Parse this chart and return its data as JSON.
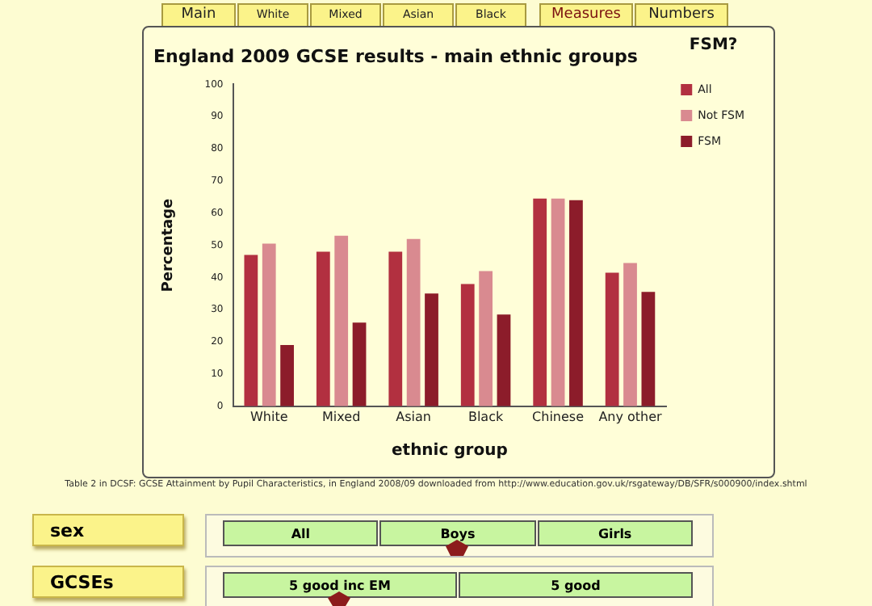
{
  "chart_data": [
    {
      "type": "bar",
      "title": "England 2009 GCSE results - main ethnic groups",
      "xlabel": "ethnic group",
      "ylabel": "Percentage",
      "legend_title": "FSM?",
      "categories": [
        "White",
        "Mixed",
        "Asian",
        "Black",
        "Chinese",
        "Any other"
      ],
      "series": [
        {
          "name": "All",
          "color": "#b23040",
          "values": [
            47,
            48,
            48,
            38,
            64.5,
            41.5
          ]
        },
        {
          "name": "Not FSM",
          "color": "#d98a90",
          "values": [
            50.5,
            53,
            52,
            42,
            64.5,
            44.5
          ]
        },
        {
          "name": "FSM",
          "color": "#8c1c2a",
          "values": [
            19,
            26,
            35,
            28.5,
            64,
            35.5
          ]
        }
      ],
      "ylim": [
        0,
        100
      ],
      "yticks": [
        0,
        10,
        20,
        30,
        40,
        50,
        60,
        70,
        80,
        90,
        100
      ],
      "grid": false,
      "legend": "top right",
      "annotations": [
        "Table 2 in DCSF: GCSE Attainment by Pupil Characteristics, in England 2008/09 downloaded from http://www.education.gov.uk/rsgateway/DB/SFR/s000900/index.shtml"
      ]
    },
    {
      "type": "other",
      "annotations": [
        "Main",
        "White",
        "Mixed",
        "Asian",
        "Black",
        "Measures",
        "Numbers"
      ]
    },
    {
      "type": "other",
      "title": "sex",
      "annotations": [
        "All",
        "Boys",
        "Girls"
      ]
    },
    {
      "type": "other",
      "title": "GCSEs",
      "annotations": [
        "5 good inc EM",
        "5 good"
      ]
    }
  ]
}
